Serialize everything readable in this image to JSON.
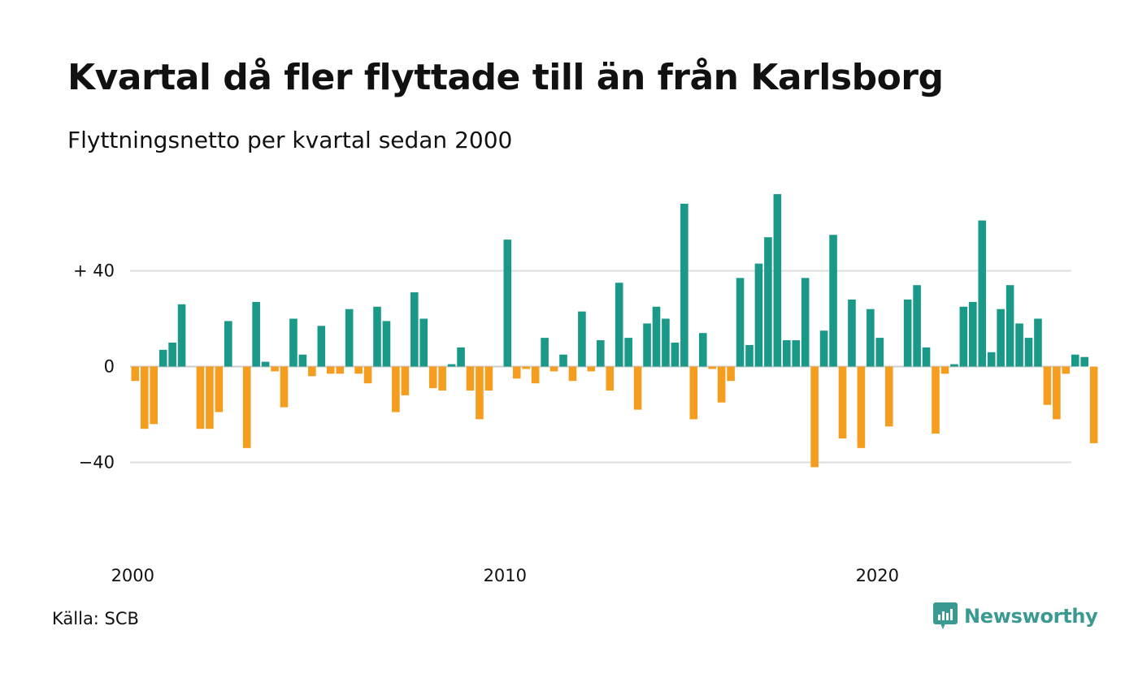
{
  "title": "Kvartal då fler flyttade till än från Karlsborg",
  "subtitle": "Flyttningsnetto per kvartal sedan 2000",
  "source": "Källa: SCB",
  "brand": "Newsworthy",
  "colors": {
    "positive": "#1a9988",
    "negative": "#f59d1e",
    "grid": "#dddddd",
    "text": "#111111",
    "brand": "#3a9a92"
  },
  "chart_data": {
    "type": "bar",
    "title": "Kvartal då fler flyttade till än från Karlsborg",
    "subtitle": "Flyttningsnetto per kvartal sedan 2000",
    "xlabel": "",
    "ylabel": "",
    "ylim": [
      -60,
      73
    ],
    "yticks": [
      {
        "value": 40,
        "label": "+ 40"
      },
      {
        "value": 0,
        "label": "0"
      },
      {
        "value": -40,
        "label": "−40"
      }
    ],
    "xticks": [
      {
        "index": 0,
        "label": "2000"
      },
      {
        "index": 40,
        "label": "2010"
      },
      {
        "index": 80,
        "label": "2020"
      }
    ],
    "grid": true,
    "legend": "none",
    "start_year": 2000,
    "values": [
      -6,
      -26,
      -24,
      7,
      10,
      26,
      0,
      -26,
      -26,
      -19,
      19,
      0,
      -34,
      27,
      2,
      -2,
      -17,
      20,
      5,
      -4,
      17,
      -3,
      -3,
      24,
      -3,
      -7,
      25,
      19,
      -19,
      -12,
      31,
      20,
      -9,
      -10,
      1,
      8,
      -10,
      -22,
      -10,
      0,
      53,
      -5,
      -1,
      -7,
      12,
      -2,
      5,
      -6,
      23,
      -2,
      11,
      -10,
      35,
      12,
      -18,
      18,
      25,
      20,
      10,
      68,
      -22,
      14,
      -1,
      -15,
      -6,
      37,
      9,
      43,
      54,
      72,
      11,
      11,
      37,
      -42,
      15,
      55,
      -30,
      28,
      -34,
      24,
      12,
      -25,
      0,
      28,
      34,
      8,
      -28,
      -3,
      1,
      25,
      27,
      61,
      6,
      24,
      34,
      18,
      12,
      20,
      -16,
      -22,
      -3,
      5,
      4,
      -32
    ]
  }
}
